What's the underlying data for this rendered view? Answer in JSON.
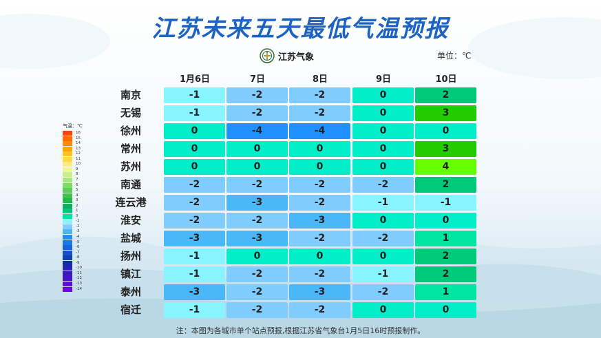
{
  "title": "江苏未来五天最低气温预报",
  "logo_text": "江苏气象",
  "unit": "单位：℃",
  "note": "注：本图为各城市单个站点预报,根据江苏省气象台1月5日16时预报制作。",
  "legend": {
    "title": "气温：℃",
    "labels": [
      "16",
      "15",
      "14",
      "13",
      "12",
      "11",
      "10",
      "9",
      "8",
      "7",
      "6",
      "5",
      "4",
      "3",
      "2",
      "1",
      "0",
      "-1",
      "-2",
      "-3",
      "-4",
      "-5",
      "-6",
      "-7",
      "-8",
      "-9",
      "-10",
      "-11",
      "-12",
      "-13",
      "-14"
    ]
  },
  "chart_data": {
    "type": "heatmap",
    "title": "江苏未来五天最低气温预报",
    "unit": "℃",
    "columns": [
      "1月6日",
      "7日",
      "8日",
      "9日",
      "10日"
    ],
    "rows": [
      "南京",
      "无锡",
      "徐州",
      "常州",
      "苏州",
      "南通",
      "连云港",
      "淮安",
      "盐城",
      "扬州",
      "镇江",
      "泰州",
      "宿迁"
    ],
    "values": [
      [
        -1,
        -2,
        -2,
        0,
        2
      ],
      [
        -1,
        -2,
        -2,
        0,
        3
      ],
      [
        0,
        -4,
        -4,
        0,
        0
      ],
      [
        0,
        0,
        0,
        0,
        3
      ],
      [
        0,
        0,
        0,
        0,
        4
      ],
      [
        -2,
        -2,
        -2,
        -2,
        2
      ],
      [
        -2,
        -3,
        -2,
        -1,
        -1
      ],
      [
        -2,
        -2,
        -3,
        0,
        0
      ],
      [
        -3,
        -3,
        -2,
        -2,
        1
      ],
      [
        -1,
        0,
        0,
        0,
        2
      ],
      [
        -1,
        -2,
        -2,
        -1,
        2
      ],
      [
        -3,
        -2,
        -3,
        -2,
        1
      ],
      [
        -1,
        -2,
        -2,
        0,
        0
      ]
    ],
    "colors": {
      "4": "#66ff00",
      "3": "#22cc00",
      "2": "#00c97a",
      "1": "#00e6a0",
      "0": "#00efc8",
      "-1": "#88f4ff",
      "-2": "#80ccff",
      "-3": "#4ab8f8",
      "-4": "#1e90ff"
    }
  }
}
